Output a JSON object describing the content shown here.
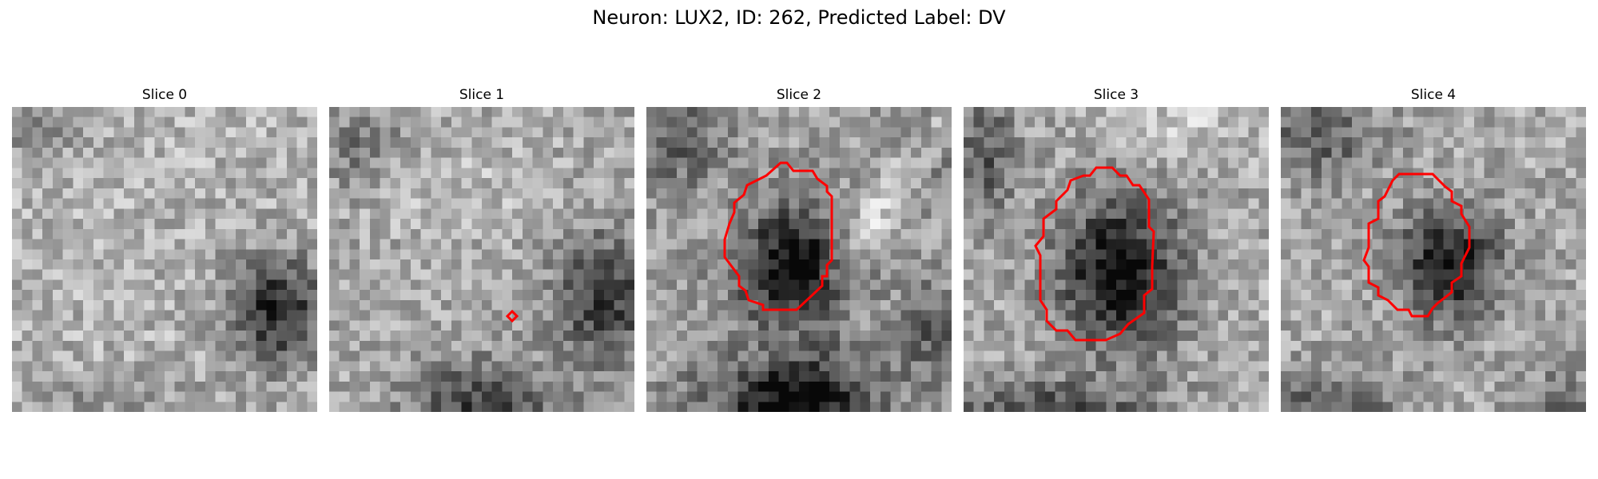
{
  "figure": {
    "title": "Neuron: LUX2, ID: 262, Predicted Label: DV"
  },
  "panels": [
    {
      "title": "Slice 0",
      "contour": "none"
    },
    {
      "title": "Slice 1",
      "contour": "tiny-marker"
    },
    {
      "title": "Slice 2",
      "contour": "octagon"
    },
    {
      "title": "Slice 3",
      "contour": "octagon"
    },
    {
      "title": "Slice 4",
      "contour": "octagon"
    }
  ],
  "colors": {
    "contour": "#ff0000",
    "background": "#ffffff"
  },
  "colormap": "grayscale"
}
